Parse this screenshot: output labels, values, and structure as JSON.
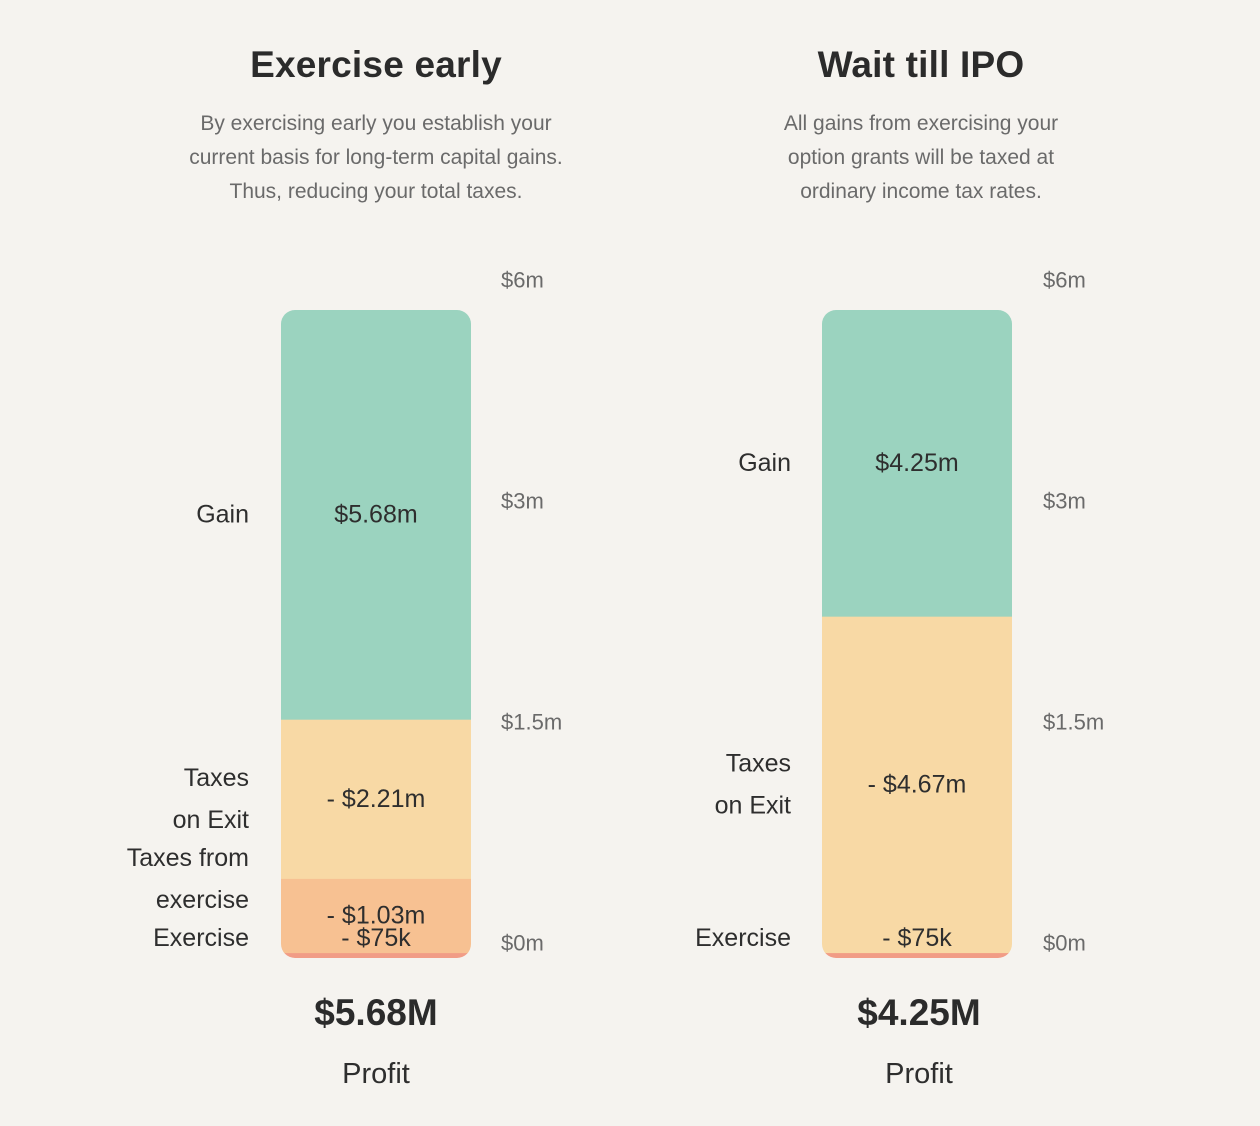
{
  "chart_data": [
    {
      "type": "bar",
      "title": "Exercise early",
      "subtitle": "By exercising early you establish your\ncurrent basis for long-term capital gains.\nThus, reducing your total taxes.",
      "y_ticks": [
        "$0m",
        "$1.5m",
        "$3m",
        "$6m"
      ],
      "ylim": [
        0,
        6
      ],
      "segments": [
        {
          "name": "Exercise",
          "label_lines": [
            "Exercise"
          ],
          "value_label": "- $75k",
          "value": 0.075,
          "color": "#f19c86"
        },
        {
          "name": "Taxes from exercise",
          "label_lines": [
            "Taxes from",
            "exercise"
          ],
          "value_label": "- $1.03m",
          "value": 1.03,
          "color": "#f7c192"
        },
        {
          "name": "Taxes on Exit",
          "label_lines": [
            "Taxes",
            "on Exit"
          ],
          "value_label": "- $2.21m",
          "value": 2.21,
          "color": "#f8d9a5"
        },
        {
          "name": "Gain",
          "label_lines": [
            "Gain"
          ],
          "value_label": "$5.68m",
          "value": 5.68,
          "color": "#9bd3bf"
        }
      ],
      "total": "$5.68M",
      "total_label": "Profit"
    },
    {
      "type": "bar",
      "title": "Wait till IPO",
      "subtitle": "All gains from exercising your\noption grants will be taxed at\nordinary income tax rates.",
      "y_ticks": [
        "$0m",
        "$1.5m",
        "$3m",
        "$6m"
      ],
      "ylim": [
        0,
        6
      ],
      "segments": [
        {
          "name": "Exercise",
          "label_lines": [
            "Exercise"
          ],
          "value_label": "- $75k",
          "value": 0.075,
          "color": "#f19c86"
        },
        {
          "name": "Taxes on Exit",
          "label_lines": [
            "Taxes",
            "on Exit"
          ],
          "value_label": "- $4.67m",
          "value": 4.67,
          "color": "#f8d9a5"
        },
        {
          "name": "Gain",
          "label_lines": [
            "Gain"
          ],
          "value_label": "$4.25m",
          "value": 4.25,
          "color": "#9bd3bf"
        }
      ],
      "total": "$4.25M",
      "total_label": "Profit"
    }
  ]
}
